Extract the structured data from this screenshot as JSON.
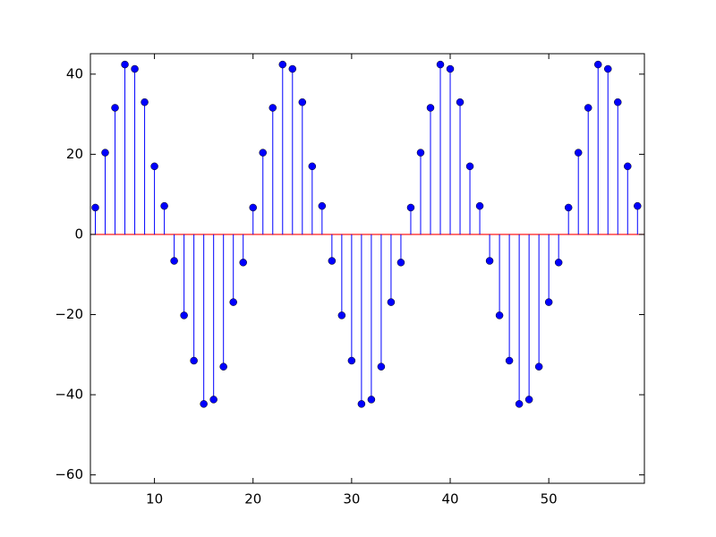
{
  "chart_data": {
    "type": "stem",
    "x": [
      4,
      5,
      6,
      7,
      8,
      9,
      10,
      11,
      12,
      13,
      14,
      15,
      16,
      17,
      18,
      19,
      20,
      21,
      22,
      23,
      24,
      25,
      26,
      27,
      28,
      29,
      30,
      31,
      32,
      33,
      34,
      35,
      36,
      37,
      38,
      39,
      40,
      41,
      42,
      43,
      44,
      45,
      46,
      47,
      48,
      49,
      50,
      51,
      52,
      53,
      54,
      55,
      56,
      57,
      58,
      59
    ],
    "values": [
      6.7,
      20.4,
      31.6,
      42.4,
      41.3,
      33,
      17,
      7.1,
      -6.6,
      -20.2,
      -31.5,
      -42.3,
      -41.2,
      -33,
      -16.9,
      -7,
      6.7,
      20.4,
      31.6,
      42.4,
      41.3,
      33,
      17,
      7.1,
      -6.6,
      -20.2,
      -31.5,
      -42.3,
      -41.2,
      -33,
      -16.9,
      -7,
      6.7,
      20.4,
      31.6,
      42.4,
      41.3,
      33,
      17,
      7.1,
      -6.6,
      -20.2,
      -31.5,
      -42.3,
      -41.2,
      -33,
      -16.9,
      -7,
      6.7,
      20.4,
      31.6,
      42.4,
      41.3,
      33,
      17,
      7.1
    ],
    "color": "#0000ff",
    "baseline_color": "#ff0000",
    "xlim": [
      3.5,
      59.7
    ],
    "ylim": [
      -62.1,
      45.1
    ],
    "xticks": [
      10,
      20,
      30,
      40,
      50
    ],
    "yticks": [
      {
        "value": -60,
        "label": "−60"
      },
      {
        "value": -40,
        "label": "−40"
      },
      {
        "value": -20,
        "label": "−20"
      },
      0,
      20,
      40
    ]
  }
}
